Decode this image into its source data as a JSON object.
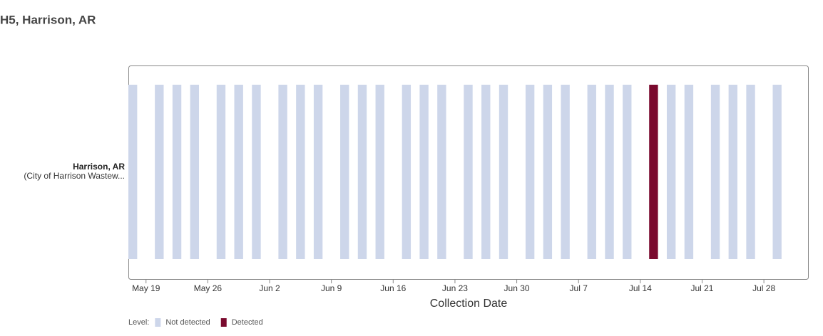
{
  "chart_data": {
    "type": "timeline",
    "title": "H5, Harrison, AR",
    "row_label": "Harrison, AR",
    "row_sublabel": "(City of Harrison Wastew...",
    "x_label": "Collection Date",
    "xlim": [
      "May 17",
      "Aug 2"
    ],
    "xticks": [
      "May 19",
      "May 26",
      "Jun 2",
      "Jun 9",
      "Jun 16",
      "Jun 23",
      "Jun 30",
      "Jul 7",
      "Jul 14",
      "Jul 21",
      "Jul 28"
    ],
    "x": [
      "May 17",
      "May 20",
      "May 22",
      "May 24",
      "May 27",
      "May 29",
      "May 31",
      "Jun 3",
      "Jun 5",
      "Jun 7",
      "Jun 10",
      "Jun 12",
      "Jun 14",
      "Jun 17",
      "Jun 19",
      "Jun 21",
      "Jun 24",
      "Jun 26",
      "Jun 28",
      "Jul 1",
      "Jul 3",
      "Jul 5",
      "Jul 8",
      "Jul 10",
      "Jul 12",
      "Jul 15",
      "Jul 17",
      "Jul 19",
      "Jul 22",
      "Jul 24",
      "Jul 26",
      "Jul 29"
    ],
    "values": [
      "Not detected",
      "Not detected",
      "Not detected",
      "Not detected",
      "Not detected",
      "Not detected",
      "Not detected",
      "Not detected",
      "Not detected",
      "Not detected",
      "Not detected",
      "Not detected",
      "Not detected",
      "Not detected",
      "Not detected",
      "Not detected",
      "Not detected",
      "Not detected",
      "Not detected",
      "Not detected",
      "Not detected",
      "Not detected",
      "Not detected",
      "Not detected",
      "Not detected",
      "Detected",
      "Not detected",
      "Not detected",
      "Not detected",
      "Not detected",
      "Not detected",
      "Not detected"
    ],
    "legend": {
      "title": "Level:",
      "items": [
        {
          "name": "Not detected",
          "color": "#cdd6ea"
        },
        {
          "name": "Detected",
          "color": "#7a0a2e"
        }
      ]
    }
  }
}
